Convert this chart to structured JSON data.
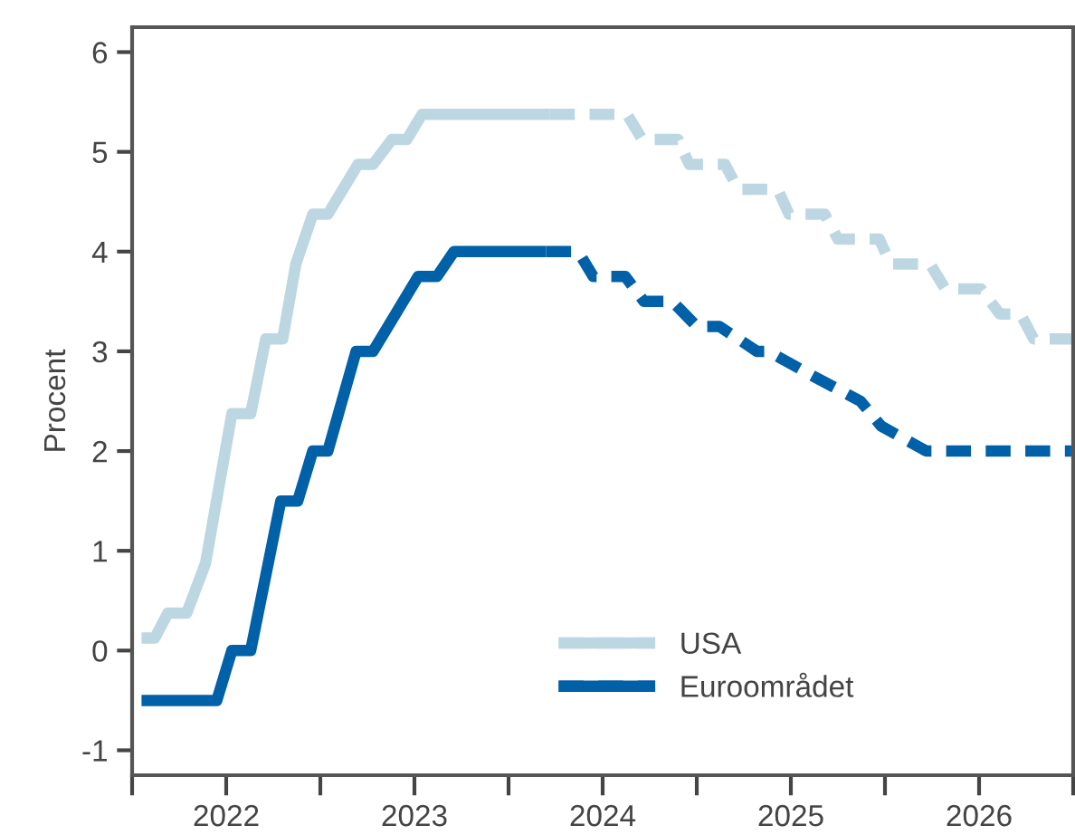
{
  "chart_data": {
    "type": "line",
    "ylabel": "Procent",
    "xlim": [
      2022,
      2027
    ],
    "ylim": [
      -1.25,
      6.25
    ],
    "xticks": [
      {
        "value": 2022,
        "label": null
      },
      {
        "value": 2022.5,
        "label": "2022"
      },
      {
        "value": 2023,
        "label": null
      },
      {
        "value": 2023.5,
        "label": "2023"
      },
      {
        "value": 2024,
        "label": null
      },
      {
        "value": 2024.5,
        "label": "2024"
      },
      {
        "value": 2025,
        "label": null
      },
      {
        "value": 2025.5,
        "label": "2025"
      },
      {
        "value": 2026,
        "label": null
      },
      {
        "value": 2026.5,
        "label": "2026"
      },
      {
        "value": 2027,
        "label": null
      }
    ],
    "yticks": [
      -1,
      0,
      1,
      2,
      3,
      4,
      5,
      6
    ],
    "grid": false,
    "legend": "bottom",
    "series": [
      {
        "name": "USA",
        "color": "#bdd7e2",
        "line_style": "solid",
        "x": [
          2022.05,
          2022.12,
          2022.19,
          2022.29,
          2022.39,
          2022.53,
          2022.63,
          2022.71,
          2022.8,
          2022.87,
          2022.96,
          2023.04,
          2023.2,
          2023.28,
          2023.38,
          2023.46,
          2023.54,
          2024.22
        ],
        "values": [
          0.125,
          0.125,
          0.375,
          0.375,
          0.875,
          2.375,
          2.375,
          3.125,
          3.125,
          3.875,
          4.375,
          4.375,
          4.875,
          4.875,
          5.125,
          5.125,
          5.375,
          5.375
        ]
      },
      {
        "color": "#bdd7e2",
        "line_style": "dashed",
        "x": [
          2024.22,
          2024.63,
          2024.71,
          2024.9,
          2024.96,
          2025.15,
          2025.22,
          2025.43,
          2025.49,
          2025.68,
          2025.75,
          2025.97,
          2026.03,
          2026.24,
          2026.32,
          2026.51,
          2026.61,
          2026.72,
          2026.79,
          2026.99
        ],
        "values": [
          5.375,
          5.375,
          5.125,
          5.125,
          4.875,
          4.875,
          4.625,
          4.625,
          4.375,
          4.375,
          4.125,
          4.125,
          3.875,
          3.875,
          3.625,
          3.625,
          3.375,
          3.375,
          3.125,
          3.125
        ]
      },
      {
        "name": "Euroområdet",
        "color": "#0060a8",
        "line_style": "solid",
        "x": [
          2022.05,
          2022.45,
          2022.53,
          2022.63,
          2022.79,
          2022.88,
          2022.96,
          2023.04,
          2023.19,
          2023.28,
          2023.52,
          2023.62,
          2023.71,
          2024.2
        ],
        "values": [
          -0.5,
          -0.5,
          0,
          0,
          1.5,
          1.5,
          2,
          2,
          3,
          3,
          3.75,
          3.75,
          4,
          4
        ]
      },
      {
        "color": "#0060a8",
        "line_style": "dashed",
        "x": [
          2024.2,
          2024.37,
          2024.45,
          2024.62,
          2024.72,
          2024.87,
          2025.0,
          2025.12,
          2025.32,
          2025.38,
          2025.62,
          2025.87,
          2025.98,
          2026.22,
          2026.99
        ],
        "values": [
          4,
          4,
          3.75,
          3.75,
          3.5,
          3.5,
          3.25,
          3.25,
          3,
          3,
          2.75,
          2.5,
          2.25,
          2,
          2
        ]
      }
    ]
  }
}
